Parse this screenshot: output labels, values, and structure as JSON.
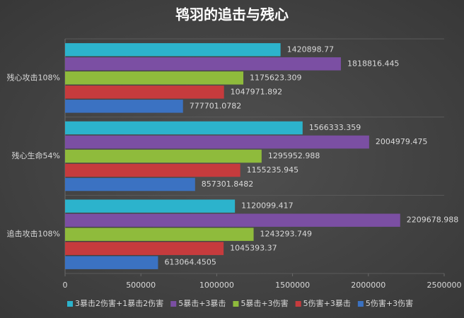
{
  "chart_data": {
    "type": "hbar",
    "title": "鸨羽的追击与残心",
    "categories": [
      "残心攻击108%",
      "残心生命54%",
      "追击攻击108%"
    ],
    "series": [
      {
        "name": "3暴击2伤害+1暴击2伤害",
        "color": "#2cb3cc",
        "values": [
          1420898.77,
          1566333.359,
          1120099.417
        ]
      },
      {
        "name": "5暴击+3暴击",
        "color": "#7b4fa3",
        "values": [
          1818816.445,
          2004979.475,
          2209678.988
        ]
      },
      {
        "name": "5暴击+3伤害",
        "color": "#8fbb3c",
        "values": [
          1175623.309,
          1295952.988,
          1243293.749
        ]
      },
      {
        "name": "5伤害+3暴击",
        "color": "#c63b3d",
        "values": [
          1047971.892,
          1155235.945,
          1045393.37
        ]
      },
      {
        "name": "5伤害+3伤害",
        "color": "#3b72c2",
        "values": [
          777701.0782,
          857301.8482,
          613064.4505
        ]
      }
    ],
    "xlim": [
      0,
      2500000
    ],
    "xticks": [
      0,
      500000,
      1000000,
      1500000,
      2000000,
      2500000
    ]
  }
}
